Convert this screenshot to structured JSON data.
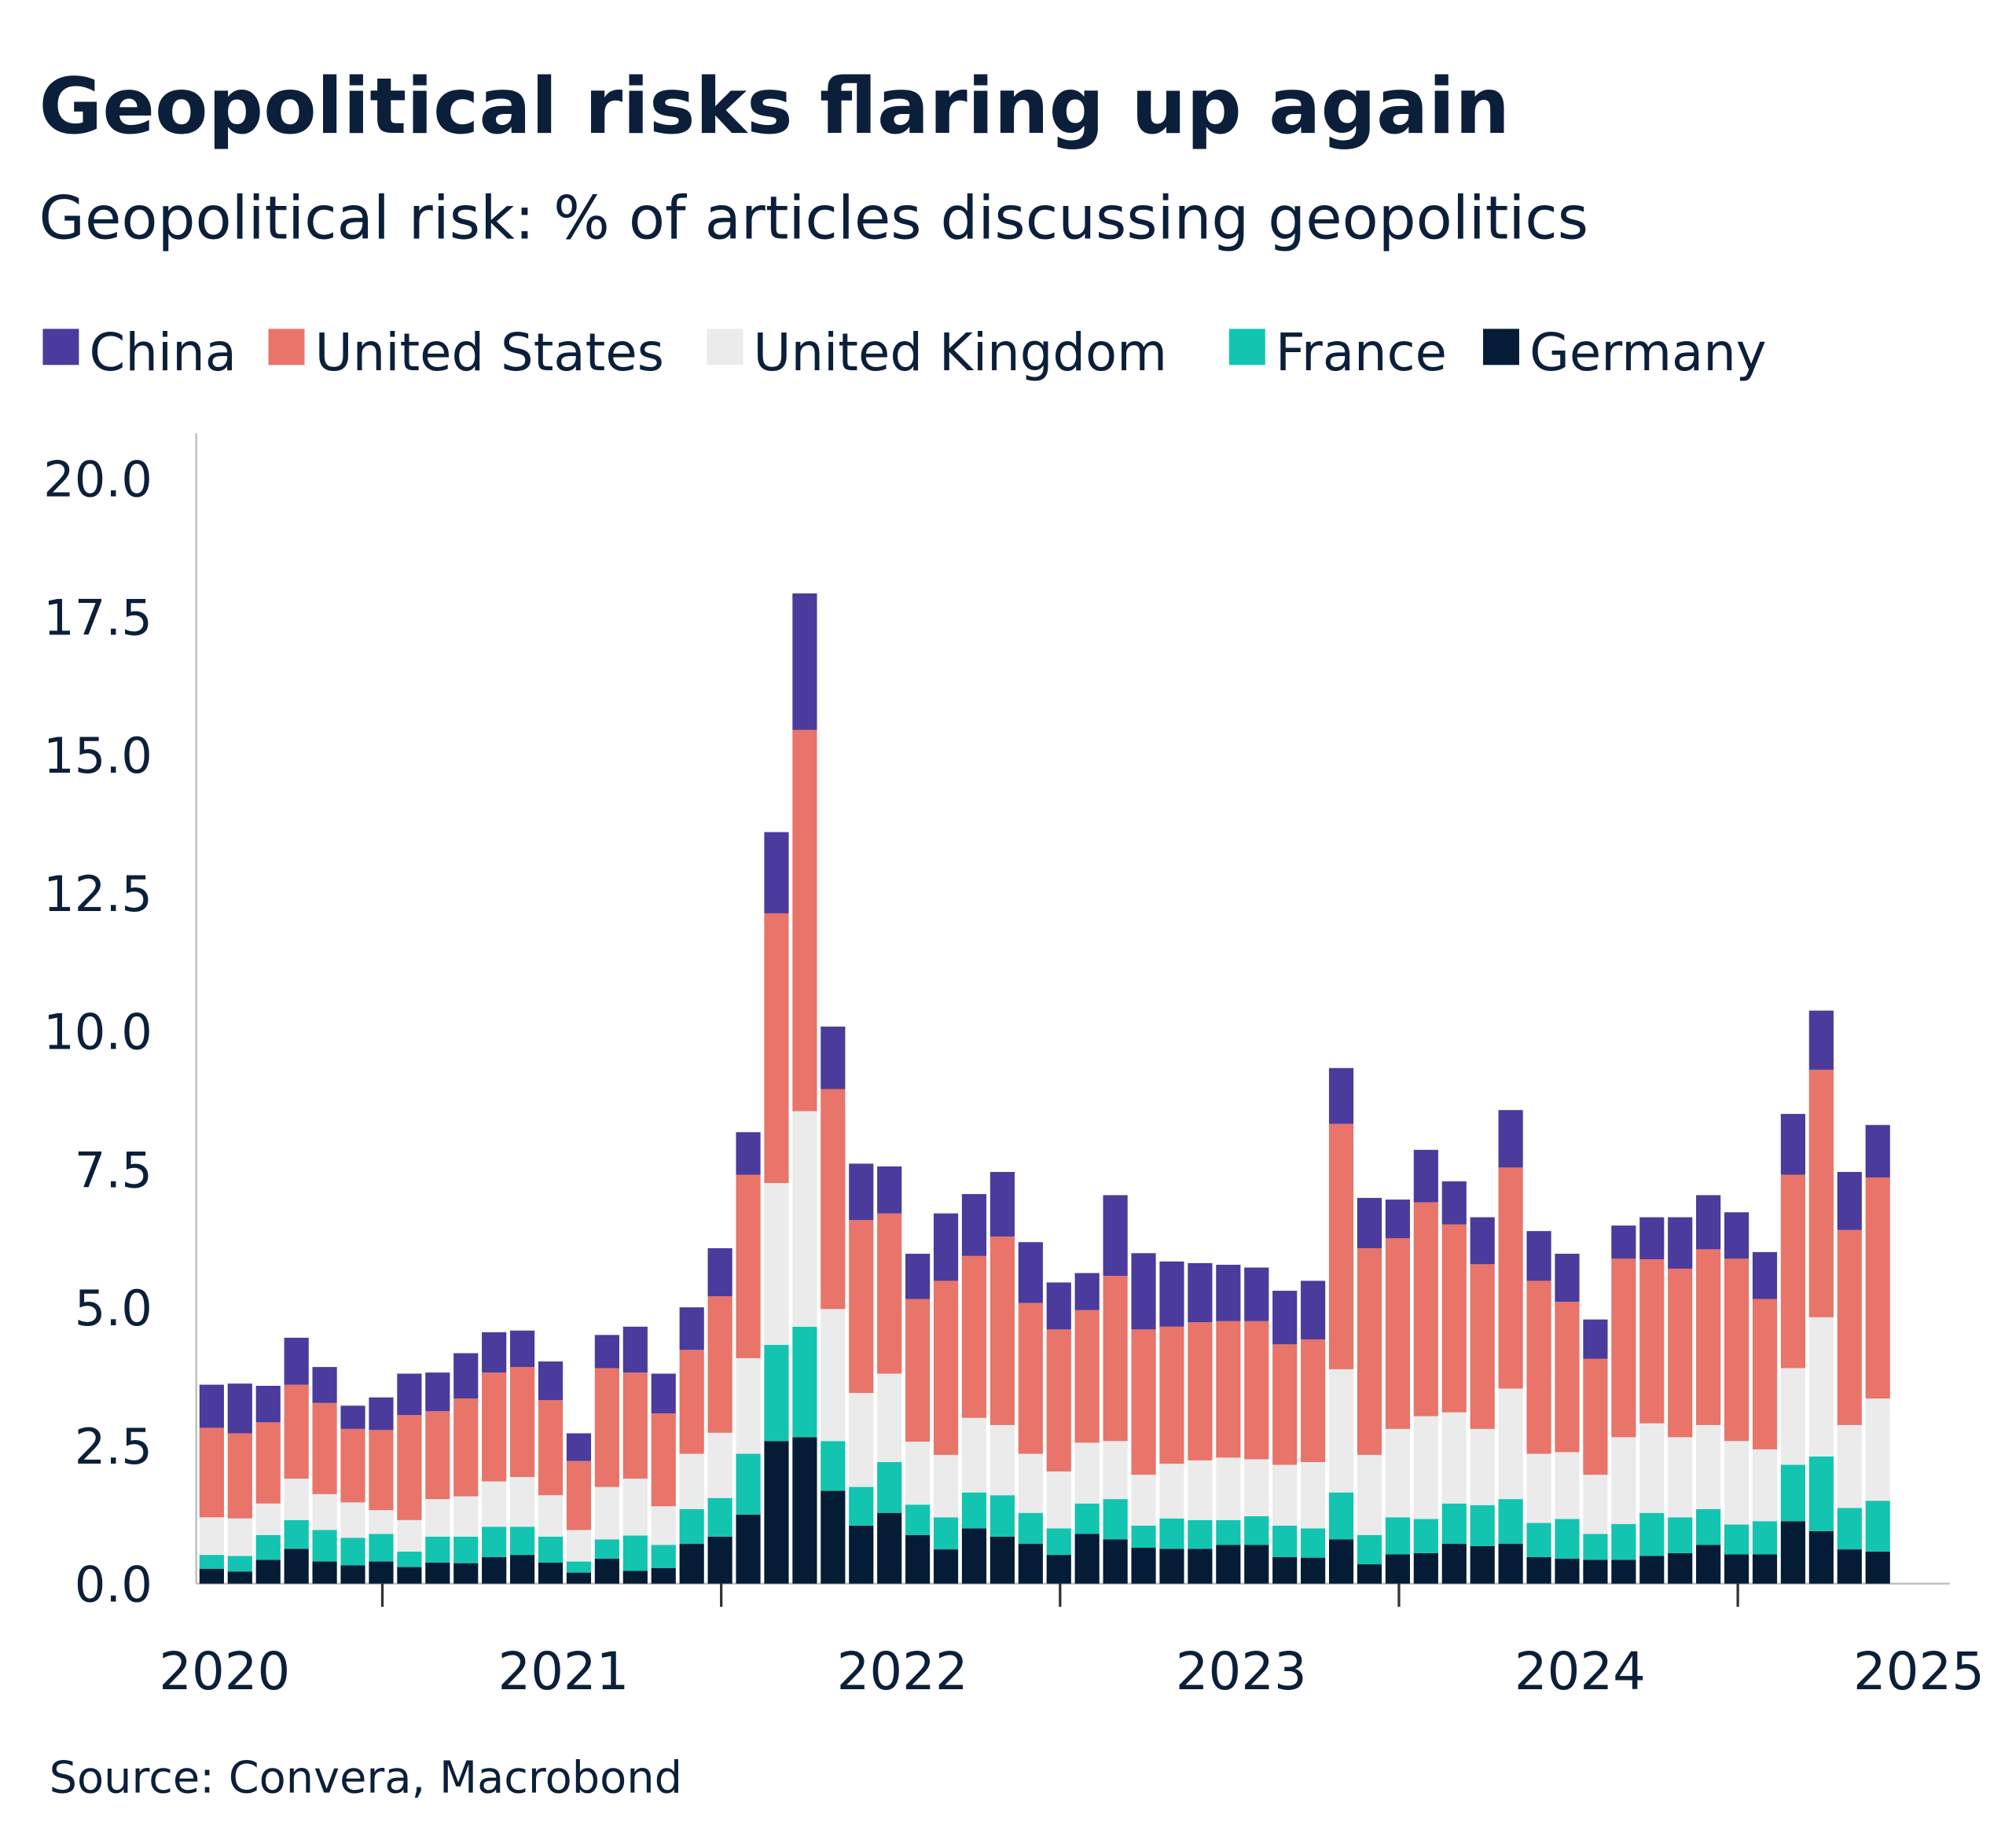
{
  "chart_data": {
    "type": "bar",
    "stacked": true,
    "title": "Geopolitical risks flaring up again",
    "subtitle": "Geopolitical risk: % of articles discussing geopolitics",
    "source": "Source: Convera, Macrobond",
    "xlabel": "",
    "ylabel": "",
    "ylim": [
      0,
      20.8
    ],
    "yticks": [
      "0.0",
      "2.5",
      "5.0",
      "7.5",
      "10.0",
      "12.5",
      "15.0",
      "17.5",
      "20.0"
    ],
    "xticks": [
      "2020",
      "2021",
      "2022",
      "2023",
      "2024",
      "2025"
    ],
    "grid": false,
    "legend_position": "top-left",
    "x_start": "2020-01",
    "frequency": "monthly",
    "series": [
      {
        "name": "Germany",
        "color": "#051c36",
        "values": [
          0.27,
          0.22,
          0.43,
          0.63,
          0.4,
          0.33,
          0.4,
          0.3,
          0.38,
          0.37,
          0.48,
          0.52,
          0.38,
          0.2,
          0.45,
          0.23,
          0.28,
          0.72,
          0.85,
          1.25,
          2.58,
          2.65,
          1.68,
          1.05,
          1.28,
          0.88,
          0.62,
          1.0,
          0.85,
          0.72,
          0.52,
          0.9,
          0.8,
          0.65,
          0.63,
          0.63,
          0.7,
          0.7,
          0.48,
          0.47,
          0.8,
          0.35,
          0.53,
          0.55,
          0.72,
          0.68,
          0.72,
          0.48,
          0.45,
          0.43,
          0.43,
          0.5,
          0.55,
          0.7,
          0.53,
          0.53,
          1.13,
          0.95,
          0.62,
          0.58
        ]
      },
      {
        "name": "France",
        "color": "#13c4b0",
        "values": [
          0.25,
          0.28,
          0.45,
          0.52,
          0.57,
          0.5,
          0.5,
          0.28,
          0.47,
          0.48,
          0.55,
          0.51,
          0.47,
          0.2,
          0.35,
          0.64,
          0.42,
          0.63,
          0.7,
          1.1,
          1.74,
          2.0,
          0.9,
          0.7,
          0.92,
          0.55,
          0.58,
          0.65,
          0.75,
          0.56,
          0.48,
          0.55,
          0.73,
          0.4,
          0.55,
          0.52,
          0.45,
          0.52,
          0.57,
          0.53,
          0.85,
          0.53,
          0.67,
          0.62,
          0.73,
          0.74,
          0.81,
          0.62,
          0.72,
          0.47,
          0.65,
          0.78,
          0.65,
          0.65,
          0.54,
          0.6,
          1.02,
          1.35,
          0.75,
          0.92
        ]
      },
      {
        "name": "United Kingdom",
        "color": "#ebebeb",
        "values": [
          0.68,
          0.68,
          0.57,
          0.75,
          0.65,
          0.64,
          0.43,
          0.57,
          0.68,
          0.73,
          0.82,
          0.9,
          0.75,
          0.57,
          0.95,
          1.03,
          0.7,
          1.0,
          1.18,
          1.73,
          2.93,
          3.9,
          2.39,
          1.7,
          1.6,
          1.14,
          1.13,
          1.35,
          1.27,
          1.07,
          1.03,
          1.1,
          1.05,
          0.92,
          0.99,
          1.08,
          1.13,
          1.03,
          1.1,
          1.2,
          2.23,
          1.45,
          1.6,
          1.86,
          1.65,
          1.38,
          2.0,
          1.25,
          1.21,
          1.07,
          1.57,
          1.62,
          1.45,
          1.52,
          1.51,
          1.3,
          1.75,
          2.52,
          1.5,
          1.85
        ]
      },
      {
        "name": "United States",
        "color": "#e8746a",
        "values": [
          1.62,
          1.54,
          1.47,
          1.7,
          1.65,
          1.33,
          1.45,
          1.9,
          1.59,
          1.77,
          1.97,
          1.99,
          1.72,
          1.25,
          2.15,
          1.92,
          1.68,
          1.88,
          2.47,
          3.32,
          4.88,
          6.9,
          3.98,
          3.13,
          2.9,
          2.58,
          3.15,
          2.93,
          3.41,
          2.73,
          2.57,
          2.4,
          2.99,
          2.63,
          2.48,
          2.5,
          2.47,
          2.5,
          2.18,
          2.22,
          4.44,
          3.74,
          3.45,
          3.87,
          3.4,
          2.98,
          4.0,
          3.13,
          2.72,
          2.1,
          3.23,
          2.97,
          3.05,
          3.18,
          3.3,
          2.72,
          3.5,
          4.48,
          3.53,
          4.0
        ]
      },
      {
        "name": "China",
        "color": "#4a3b9c",
        "values": [
          0.78,
          0.9,
          0.66,
          0.85,
          0.65,
          0.42,
          0.59,
          0.75,
          0.7,
          0.82,
          0.73,
          0.66,
          0.7,
          0.5,
          0.6,
          0.83,
          0.72,
          0.77,
          0.87,
          0.77,
          1.47,
          2.47,
          1.13,
          1.02,
          0.85,
          0.82,
          1.22,
          1.12,
          1.17,
          1.1,
          0.85,
          0.67,
          1.46,
          1.38,
          1.18,
          1.07,
          1.02,
          0.97,
          0.97,
          1.06,
          1.01,
          0.91,
          0.7,
          0.95,
          0.78,
          0.85,
          1.04,
          0.9,
          0.87,
          0.71,
          0.6,
          0.76,
          0.93,
          0.98,
          0.84,
          0.85,
          1.1,
          1.07,
          1.05,
          0.95
        ]
      }
    ]
  },
  "legend_order": [
    "China",
    "United States",
    "United Kingdom",
    "France",
    "Germany"
  ]
}
